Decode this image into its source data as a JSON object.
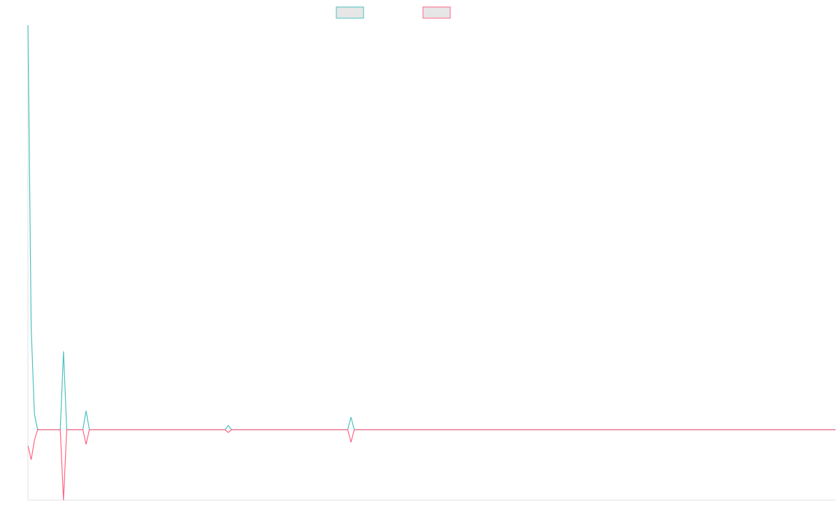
{
  "chart_data": {
    "type": "line",
    "x": [
      0,
      1,
      2,
      3,
      10,
      11,
      12,
      17,
      18,
      19,
      61,
      62,
      63,
      99,
      100,
      101,
      250
    ],
    "series": [
      {
        "color": "#4bc0c0",
        "values": [
          579,
          145,
          22,
          0,
          0,
          112,
          0,
          0,
          27,
          0,
          0,
          6,
          0,
          0,
          18,
          0,
          0
        ]
      },
      {
        "color": "#ff6384",
        "values": [
          -23,
          -43,
          -15,
          0,
          0,
          -101,
          0,
          0,
          -21,
          0,
          0,
          -4,
          0,
          0,
          -18,
          0,
          0
        ]
      }
    ],
    "xlim": [
      0,
      250
    ],
    "ylim": [
      -101,
      579
    ]
  }
}
